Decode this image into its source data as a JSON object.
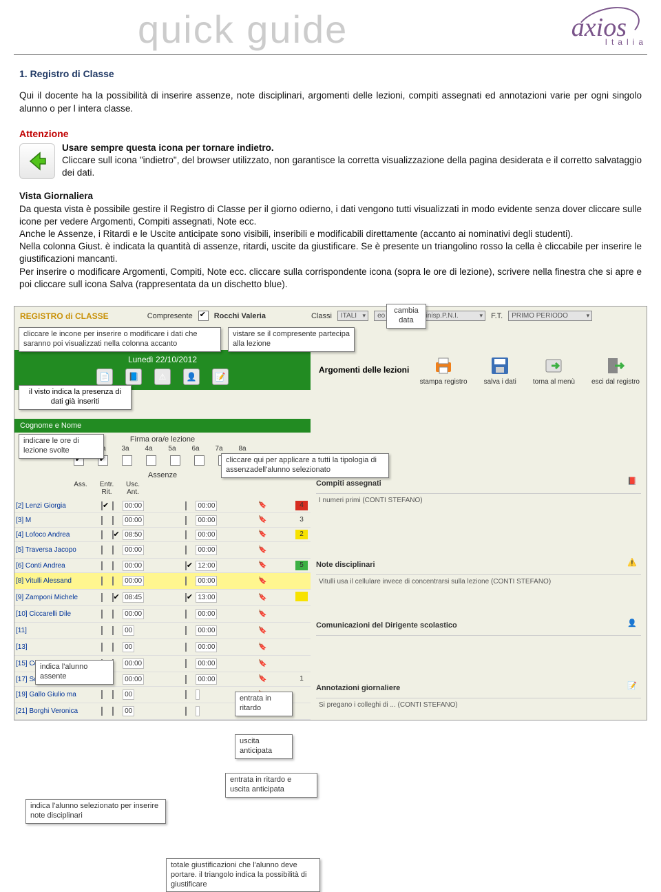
{
  "header": {
    "quick_guide": "quick guide",
    "logo_text": "axios",
    "logo_sub": "Italia"
  },
  "article": {
    "title": "1. Registro di Classe",
    "p1": "Qui il docente ha la possibilità di inserire assenze, note disciplinari, argomenti delle lezioni, compiti assegnati ed annotazioni varie per ogni singolo alunno o per l intera classe.",
    "attenzione": "Attenzione",
    "att_b": "Usare sempre questa icona per tornare indietro.",
    "att_p": "Cliccare sull icona \"indietro\", del browser utilizzato, non garantisce la corretta visualizzazione della pagina desiderata e il corretto salvataggio dei dati.",
    "vg_title": "Vista Giornaliera",
    "vg_p1": "Da questa vista è possibile gestire il Registro di Classe per il giorno odierno, i dati vengono tutti visualizzati in modo evidente senza dover cliccare sulle icone per vedere Argomenti, Compiti assegnati, Note ecc.",
    "vg_p2": "Anche le Assenze, i Ritardi e le Uscite anticipate sono visibili, inseribili e modificabili direttamente (accanto ai nominativi degli studenti).",
    "vg_p3": "Nella colonna Giust. è indicata la quantità di assenze, ritardi, uscite da giustificare. Se è presente un triangolino rosso la cella è cliccabile per inserire le giustificazioni mancanti.",
    "vg_p4": "Per inserire o modificare Argomenti, Compiti, Note ecc. cliccare sulla corrispondente icona (sopra le ore di lezione), scrivere nella finestra che si apre e poi cliccare sull icona Salva (rappresentata da un dischetto blue)."
  },
  "screenshot": {
    "reg_title": "REGISTRO di CLASSE",
    "compresente": "Compresente",
    "comp_name": "Rocchi Valeria",
    "classi_lbl": "Classi",
    "classi_val": "ITALI",
    "classi_val2": "eo Scientifico Minisp.P.N.I.",
    "ft_lbl": "F.T.",
    "ft_val": "PRIMO PERIODO",
    "callout_icons": "cliccare le incone per inserire o modificare i dati che saranno poi visualizzati nella colonna accanto",
    "callout_comp": "vistare se il compresente partecipa alla lezione",
    "callout_date": "cambia data",
    "date": "Lunedì 22/10/2012",
    "arg_title": "Argomenti delle lezioni",
    "tool_stampa": "stampa registro",
    "tool_salva": "salva i dati",
    "tool_menu": "torna al menù",
    "tool_esci": "esci dal registro",
    "callout_visto": "il visto indica la presenza di dati già inseriti",
    "cognome": "Cognome e Nome",
    "callout_ore": "indicare le ore di lezione svolte",
    "firma": "Firma ora/e lezione",
    "ore": [
      "1a",
      "2a",
      "3a",
      "4a",
      "5a",
      "6a",
      "7a",
      "8a"
    ],
    "ore_checked": [
      true,
      true,
      false,
      false,
      false,
      false,
      false,
      false
    ],
    "assenze": "Assenze",
    "ass_cols": [
      "Ass.",
      "Entr. Rit.",
      "Usc. Ant."
    ],
    "callout_tipo": "cliccare qui per applicare a tutti la tipologia di assenzadell'alunno selezionato",
    "callout_assente": "indica l'alunno assente",
    "callout_ritardo": "entrata in ritardo",
    "callout_uscita": "uscita anticipata",
    "callout_doppia": "entrata in ritardo e uscita anticipata",
    "callout_nota": "indica l'alunno selezionato per inserire note disciplinari",
    "callout_giust": "totale giustificazioni che l'alunno deve portare. il triangolo indica la possibilità di giustificare",
    "students": [
      {
        "n": "[2] Lenzi Giorgia",
        "ass": true,
        "er": false,
        "t1": "00:00",
        "t2": "00:00",
        "g": "4",
        "gc": "cell-red"
      },
      {
        "n": "[3] M",
        "ass": false,
        "er": false,
        "t1": "00:00",
        "t2": "00:00",
        "g": "3",
        "gc": ""
      },
      {
        "n": "[4] Lofoco Andrea",
        "ass": false,
        "er": true,
        "t1": "08:50",
        "t2": "00:00",
        "g": "2",
        "gc": "cell-yellow"
      },
      {
        "n": "[5] Traversa Jacopo",
        "ass": false,
        "er": false,
        "t1": "00:00",
        "t2": "00:00",
        "g": "",
        "gc": ""
      },
      {
        "n": "[6] Conti Andrea",
        "ass": false,
        "er": false,
        "t1": "00:00",
        "t2": "12:00",
        "g": "5",
        "gc": "cell-green",
        "u": true
      },
      {
        "n": "[8] Vitulli Alessand",
        "ass": false,
        "er": false,
        "t1": "00:00",
        "t2": "00:00",
        "g": "",
        "gc": "",
        "hl": true
      },
      {
        "n": "[9] Zamponi Michele",
        "ass": false,
        "er": true,
        "t1": "08:45",
        "t2": "13:00",
        "g": "",
        "gc": "cell-yellow",
        "u": true
      },
      {
        "n": "[10] Ciccarelli Dile",
        "ass": false,
        "er": false,
        "t1": "00:00",
        "t2": "00:00",
        "g": "",
        "gc": ""
      },
      {
        "n": "[11]",
        "ass": false,
        "er": false,
        "t1": "00",
        "t2": "00:00",
        "g": "",
        "gc": ""
      },
      {
        "n": "[13]",
        "ass": false,
        "er": false,
        "t1": "00",
        "t2": "00:00",
        "g": "",
        "gc": ""
      },
      {
        "n": "[15] Comune Kristian",
        "ass": false,
        "er": false,
        "t1": "00:00",
        "t2": "00:00",
        "g": "",
        "gc": ""
      },
      {
        "n": "[17] Sciacqua Benede",
        "ass": false,
        "er": false,
        "t1": "00:00",
        "t2": "00:00",
        "g": "1",
        "gc": ""
      },
      {
        "n": "[19] Gallo Giulio ma",
        "ass": false,
        "er": false,
        "t1": "00",
        "t2": "",
        "g": "",
        "gc": ""
      },
      {
        "n": "[21] Borghi Veronica",
        "ass": false,
        "er": false,
        "t1": "00",
        "t2": "",
        "g": "",
        "gc": ""
      }
    ],
    "sec_compiti": "Compiti assegnati",
    "sec_compiti_txt": "I numeri primi (CONTI STEFANO)",
    "sec_note": "Note disciplinari",
    "sec_note_txt": "Vitulli usa il cellulare invece di concentrarsi sulla lezione (CONTI STEFANO)",
    "sec_dir": "Comunicazioni del Dirigente scolastico",
    "sec_ann": "Annotazioni giornaliere",
    "sec_ann_txt": "Si pregano i colleghi di ... (CONTI STEFANO)"
  },
  "colors": {
    "title_color": "#1f3864",
    "attenzione_color": "#c00000",
    "greenbar": "#228b22",
    "logo_color": "#7a548a",
    "guide_color": "#cccccc"
  }
}
